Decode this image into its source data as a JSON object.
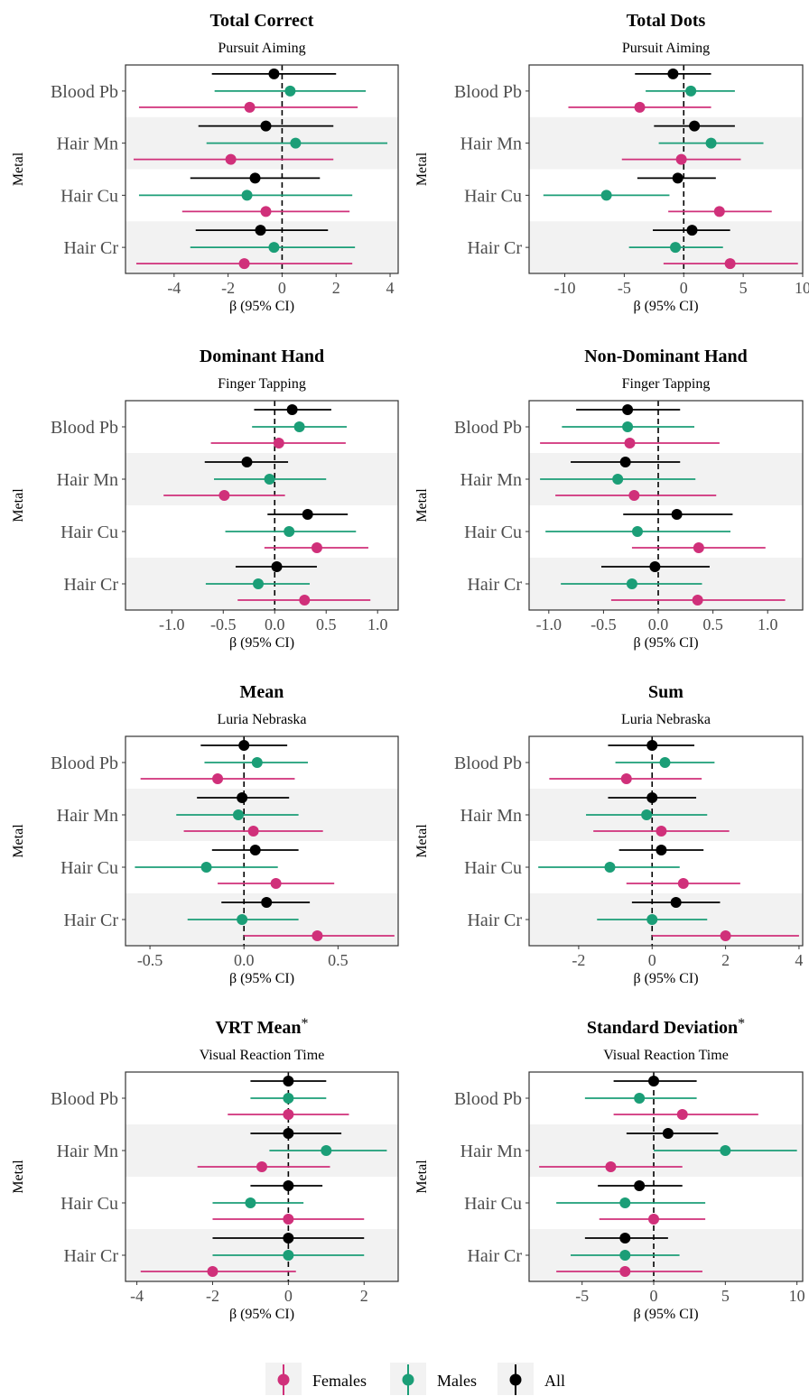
{
  "chart_data": [
    {
      "type": "forest",
      "title": "Total Correct",
      "title_mark": "",
      "subtitle": "Pursuit Aiming",
      "xlabel": "β (95% CI)",
      "ylabel": "Metal",
      "xlim": [
        -5.8,
        4.3
      ],
      "xticks": [
        -4,
        -2,
        0,
        2,
        4
      ],
      "xtick_labels": [
        "-4",
        "-2",
        "0",
        "2",
        "4"
      ],
      "categories": [
        "Blood Pb",
        "Hair Mn",
        "Hair Cu",
        "Hair Cr"
      ],
      "series": [
        {
          "name": "All",
          "color": "#000000",
          "estimates": [
            -0.3,
            -0.6,
            -1.0,
            -0.8
          ],
          "ci_low": [
            -2.6,
            -3.1,
            -3.4,
            -3.2
          ],
          "ci_high": [
            2.0,
            1.9,
            1.4,
            1.7
          ]
        },
        {
          "name": "Males",
          "color": "#1b9e77",
          "estimates": [
            0.3,
            0.5,
            -1.3,
            -0.3
          ],
          "ci_low": [
            -2.5,
            -2.8,
            -5.3,
            -3.4
          ],
          "ci_high": [
            3.1,
            3.9,
            2.6,
            2.7
          ]
        },
        {
          "name": "Females",
          "color": "#d0307a",
          "estimates": [
            -1.2,
            -1.9,
            -0.6,
            -1.4
          ],
          "ci_low": [
            -5.3,
            -5.5,
            -3.7,
            -5.4
          ],
          "ci_high": [
            2.8,
            1.9,
            2.5,
            2.6
          ]
        }
      ]
    },
    {
      "type": "forest",
      "title": "Total Dots",
      "title_mark": "",
      "subtitle": "Pursuit Aiming",
      "xlabel": "β (95% CI)",
      "ylabel": "Metal",
      "xlim": [
        -13.0,
        10.0
      ],
      "xticks": [
        -10,
        -5,
        0,
        5,
        10
      ],
      "xtick_labels": [
        "-10",
        "-5",
        "0",
        "5",
        "10"
      ],
      "categories": [
        "Blood Pb",
        "Hair Mn",
        "Hair Cu",
        "Hair Cr"
      ],
      "series": [
        {
          "name": "All",
          "color": "#000000",
          "estimates": [
            -0.9,
            0.9,
            -0.5,
            0.7
          ],
          "ci_low": [
            -4.1,
            -2.5,
            -3.9,
            -2.6
          ],
          "ci_high": [
            2.3,
            4.3,
            2.7,
            3.9
          ]
        },
        {
          "name": "Males",
          "color": "#1b9e77",
          "estimates": [
            0.6,
            2.3,
            -6.5,
            -0.7
          ],
          "ci_low": [
            -3.2,
            -2.1,
            -11.8,
            -4.6
          ],
          "ci_high": [
            4.3,
            6.7,
            -1.2,
            3.3
          ]
        },
        {
          "name": "Females",
          "color": "#d0307a",
          "estimates": [
            -3.7,
            -0.2,
            3.0,
            3.9
          ],
          "ci_low": [
            -9.7,
            -5.2,
            -1.3,
            -1.7
          ],
          "ci_high": [
            2.3,
            4.8,
            7.4,
            9.6
          ]
        }
      ]
    },
    {
      "type": "forest",
      "title": "Dominant Hand",
      "title_mark": "",
      "subtitle": "Finger Tapping",
      "xlabel": "β (95% CI)",
      "ylabel": "Metal",
      "xlim": [
        -1.45,
        1.2
      ],
      "xticks": [
        -1.0,
        -0.5,
        0.0,
        0.5,
        1.0
      ],
      "xtick_labels": [
        "-1.0",
        "-0.5",
        "0.0",
        "0.5",
        "1.0"
      ],
      "categories": [
        "Blood Pb",
        "Hair Mn",
        "Hair Cu",
        "Hair Cr"
      ],
      "series": [
        {
          "name": "All",
          "color": "#000000",
          "estimates": [
            0.17,
            -0.27,
            0.32,
            0.02
          ],
          "ci_low": [
            -0.2,
            -0.68,
            -0.07,
            -0.38
          ],
          "ci_high": [
            0.55,
            0.13,
            0.71,
            0.41
          ]
        },
        {
          "name": "Males",
          "color": "#1b9e77",
          "estimates": [
            0.24,
            -0.05,
            0.14,
            -0.16
          ],
          "ci_low": [
            -0.22,
            -0.59,
            -0.48,
            -0.67
          ],
          "ci_high": [
            0.7,
            0.5,
            0.79,
            0.34
          ]
        },
        {
          "name": "Females",
          "color": "#d0307a",
          "estimates": [
            0.04,
            -0.49,
            0.41,
            0.29
          ],
          "ci_low": [
            -0.62,
            -1.08,
            -0.1,
            -0.36
          ],
          "ci_high": [
            0.69,
            0.1,
            0.91,
            0.93
          ]
        }
      ]
    },
    {
      "type": "forest",
      "title": "Non-Dominant Hand",
      "title_mark": "",
      "subtitle": "Finger Tapping",
      "xlabel": "β (95% CI)",
      "ylabel": "Metal",
      "xlim": [
        -1.18,
        1.32
      ],
      "xticks": [
        -1.0,
        -0.5,
        0.0,
        0.5,
        1.0
      ],
      "xtick_labels": [
        "-1.0",
        "-0.5",
        "0.0",
        "0.5",
        "1.0"
      ],
      "categories": [
        "Blood Pb",
        "Hair Mn",
        "Hair Cu",
        "Hair Cr"
      ],
      "series": [
        {
          "name": "All",
          "color": "#000000",
          "estimates": [
            -0.28,
            -0.3,
            0.17,
            -0.03
          ],
          "ci_low": [
            -0.75,
            -0.8,
            -0.32,
            -0.52
          ],
          "ci_high": [
            0.2,
            0.2,
            0.68,
            0.47
          ]
        },
        {
          "name": "Males",
          "color": "#1b9e77",
          "estimates": [
            -0.28,
            -0.37,
            -0.19,
            -0.24
          ],
          "ci_low": [
            -0.88,
            -1.08,
            -1.03,
            -0.89
          ],
          "ci_high": [
            0.33,
            0.34,
            0.66,
            0.4
          ]
        },
        {
          "name": "Females",
          "color": "#d0307a",
          "estimates": [
            -0.26,
            -0.22,
            0.37,
            0.36
          ],
          "ci_low": [
            -1.08,
            -0.94,
            -0.24,
            -0.43
          ],
          "ci_high": [
            0.56,
            0.53,
            0.98,
            1.16
          ]
        }
      ]
    },
    {
      "type": "forest",
      "title": "Mean",
      "title_mark": "",
      "subtitle": "Luria Nebraska",
      "xlabel": "β (95% CI)",
      "ylabel": "Metal",
      "xlim": [
        -0.63,
        0.82
      ],
      "xticks": [
        -0.5,
        0.0,
        0.5
      ],
      "xtick_labels": [
        "-0.5",
        "0.0",
        "0.5"
      ],
      "categories": [
        "Blood Pb",
        "Hair Mn",
        "Hair Cu",
        "Hair Cr"
      ],
      "series": [
        {
          "name": "All",
          "color": "#000000",
          "estimates": [
            0.0,
            -0.01,
            0.06,
            0.12
          ],
          "ci_low": [
            -0.23,
            -0.25,
            -0.17,
            -0.12
          ],
          "ci_high": [
            0.23,
            0.24,
            0.29,
            0.35
          ]
        },
        {
          "name": "Males",
          "color": "#1b9e77",
          "estimates": [
            0.07,
            -0.03,
            -0.2,
            -0.01
          ],
          "ci_low": [
            -0.21,
            -0.36,
            -0.58,
            -0.3
          ],
          "ci_high": [
            0.34,
            0.29,
            0.18,
            0.29
          ]
        },
        {
          "name": "Females",
          "color": "#d0307a",
          "estimates": [
            -0.14,
            0.05,
            0.17,
            0.39
          ],
          "ci_low": [
            -0.55,
            -0.32,
            -0.14,
            0.0
          ],
          "ci_high": [
            0.27,
            0.42,
            0.48,
            0.8
          ]
        }
      ]
    },
    {
      "type": "forest",
      "title": "Sum",
      "title_mark": "",
      "subtitle": "Luria Nebraska",
      "xlabel": "β (95% CI)",
      "ylabel": "Metal",
      "xlim": [
        -3.35,
        4.1
      ],
      "xticks": [
        -2,
        0,
        2,
        4
      ],
      "xtick_labels": [
        "-2",
        "0",
        "2",
        "4"
      ],
      "categories": [
        "Blood Pb",
        "Hair Mn",
        "Hair Cu",
        "Hair Cr"
      ],
      "series": [
        {
          "name": "All",
          "color": "#000000",
          "estimates": [
            0.0,
            0.0,
            0.25,
            0.65
          ],
          "ci_low": [
            -1.2,
            -1.2,
            -0.9,
            -0.55
          ],
          "ci_high": [
            1.15,
            1.2,
            1.4,
            1.85
          ]
        },
        {
          "name": "Males",
          "color": "#1b9e77",
          "estimates": [
            0.35,
            -0.15,
            -1.15,
            0.0
          ],
          "ci_low": [
            -1.0,
            -1.8,
            -3.1,
            -1.5
          ],
          "ci_high": [
            1.7,
            1.5,
            0.75,
            1.5
          ]
        },
        {
          "name": "Females",
          "color": "#d0307a",
          "estimates": [
            -0.7,
            0.25,
            0.85,
            2.0
          ],
          "ci_low": [
            -2.8,
            -1.6,
            -0.7,
            0.0
          ],
          "ci_high": [
            1.35,
            2.1,
            2.4,
            4.0
          ]
        }
      ]
    },
    {
      "type": "forest",
      "title": "VRT Mean",
      "title_mark": "*",
      "subtitle": "Visual Reaction Time",
      "xlabel": "β (95% CI)",
      "ylabel": "Metal",
      "xlim": [
        -4.3,
        2.9
      ],
      "xticks": [
        -4,
        -2,
        0,
        2
      ],
      "xtick_labels": [
        "-4",
        "-2",
        "0",
        "2"
      ],
      "categories": [
        "Blood Pb",
        "Hair Mn",
        "Hair Cu",
        "Hair Cr"
      ],
      "series": [
        {
          "name": "All",
          "color": "#000000",
          "estimates": [
            0.0,
            0.0,
            0.0,
            0.0
          ],
          "ci_low": [
            -1.0,
            -1.0,
            -1.0,
            -2.0
          ],
          "ci_high": [
            1.0,
            1.4,
            0.9,
            2.0
          ]
        },
        {
          "name": "Males",
          "color": "#1b9e77",
          "estimates": [
            0.0,
            1.0,
            -1.0,
            0.0
          ],
          "ci_low": [
            -1.0,
            -0.5,
            -2.0,
            -2.0
          ],
          "ci_high": [
            1.0,
            2.6,
            0.4,
            2.0
          ]
        },
        {
          "name": "Females",
          "color": "#d0307a",
          "estimates": [
            0.0,
            -0.7,
            0.0,
            -2.0
          ],
          "ci_low": [
            -1.6,
            -2.4,
            -2.0,
            -3.9
          ],
          "ci_high": [
            1.6,
            1.1,
            2.0,
            0.2
          ]
        }
      ]
    },
    {
      "type": "forest",
      "title": "Standard Deviation",
      "title_mark": "*",
      "subtitle": "Visual Reaction Time",
      "xlabel": "β (95% CI)",
      "ylabel": "Metal",
      "xlim": [
        -8.7,
        10.4
      ],
      "xticks": [
        -5,
        0,
        5,
        10
      ],
      "xtick_labels": [
        "-5",
        "0",
        "5",
        "10"
      ],
      "categories": [
        "Blood Pb",
        "Hair Mn",
        "Hair Cu",
        "Hair Cr"
      ],
      "series": [
        {
          "name": "All",
          "color": "#000000",
          "estimates": [
            0.0,
            1.0,
            -1.0,
            -2.0
          ],
          "ci_low": [
            -2.8,
            -1.9,
            -3.9,
            -4.8
          ],
          "ci_high": [
            3.0,
            4.5,
            2.0,
            1.0
          ]
        },
        {
          "name": "Males",
          "color": "#1b9e77",
          "estimates": [
            -1.0,
            5.0,
            -2.0,
            -2.0
          ],
          "ci_low": [
            -4.8,
            0.0,
            -6.8,
            -5.8
          ],
          "ci_high": [
            3.0,
            10.0,
            3.6,
            1.8
          ]
        },
        {
          "name": "Females",
          "color": "#d0307a",
          "estimates": [
            2.0,
            -3.0,
            0.0,
            -2.0
          ],
          "ci_low": [
            -2.8,
            -8.0,
            -3.8,
            -6.8
          ],
          "ci_high": [
            7.3,
            2.0,
            3.6,
            3.4
          ]
        }
      ]
    }
  ],
  "legend": {
    "position": "bottom",
    "items": [
      {
        "label": "Females",
        "color": "#d0307a"
      },
      {
        "label": "Males",
        "color": "#1b9e77"
      },
      {
        "label": "All",
        "color": "#000000"
      }
    ]
  }
}
